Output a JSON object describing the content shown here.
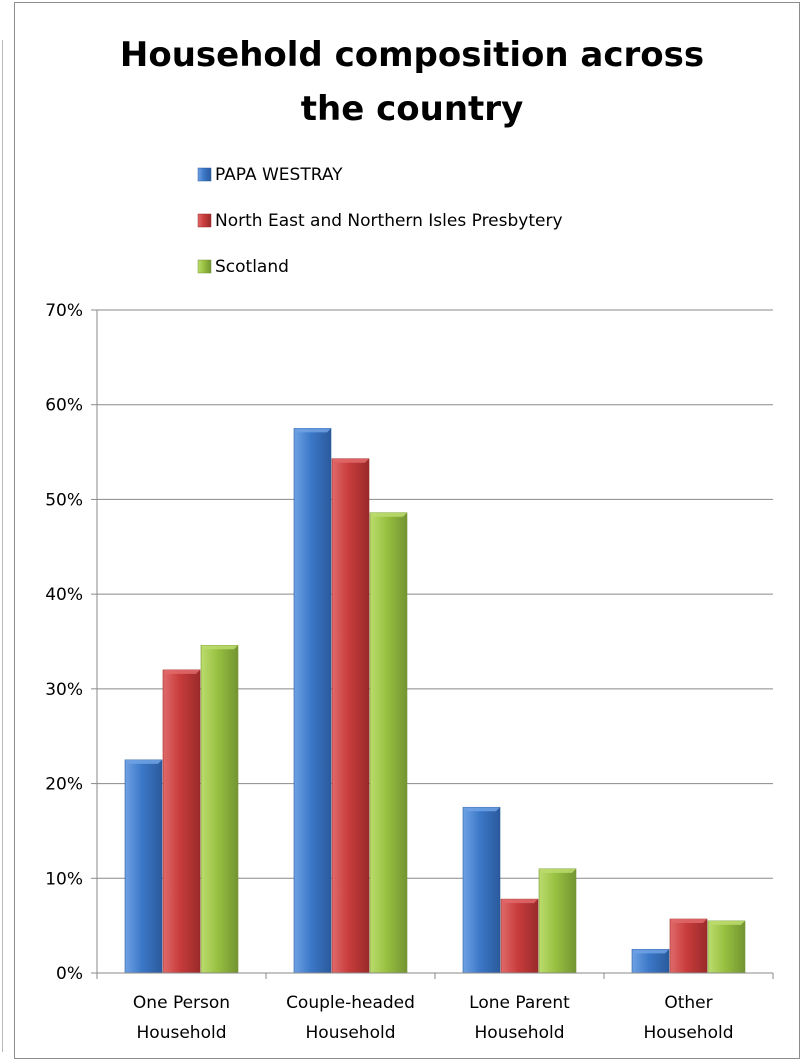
{
  "chart_data": {
    "type": "bar",
    "title_lines": [
      "Household composition across",
      "the country"
    ],
    "categories": [
      [
        "One Person",
        "Household"
      ],
      [
        "Couple-headed",
        "Household"
      ],
      [
        "Lone Parent",
        "Household"
      ],
      [
        "Other",
        "Household"
      ]
    ],
    "series": [
      {
        "name": "PAPA WESTRAY",
        "values": [
          22.5,
          57.5,
          17.5,
          2.5
        ],
        "color": "#3c78c8",
        "dark": "#2a5a9c",
        "light": "#6fa2e4"
      },
      {
        "name": "North East and Northern Isles Presbytery",
        "values": [
          32.0,
          54.3,
          7.8,
          5.7
        ],
        "color": "#c83c3c",
        "dark": "#9a2a2a",
        "light": "#e06a6a"
      },
      {
        "name": "Scotland",
        "values": [
          34.6,
          48.6,
          11.0,
          5.5
        ],
        "color": "#98c040",
        "dark": "#739432",
        "light": "#bcdc6e"
      }
    ],
    "ylim": [
      0,
      70
    ],
    "yticks": [
      "0%",
      "10%",
      "20%",
      "30%",
      "40%",
      "50%",
      "60%",
      "70%"
    ],
    "grid": true,
    "legend_position": "top"
  }
}
